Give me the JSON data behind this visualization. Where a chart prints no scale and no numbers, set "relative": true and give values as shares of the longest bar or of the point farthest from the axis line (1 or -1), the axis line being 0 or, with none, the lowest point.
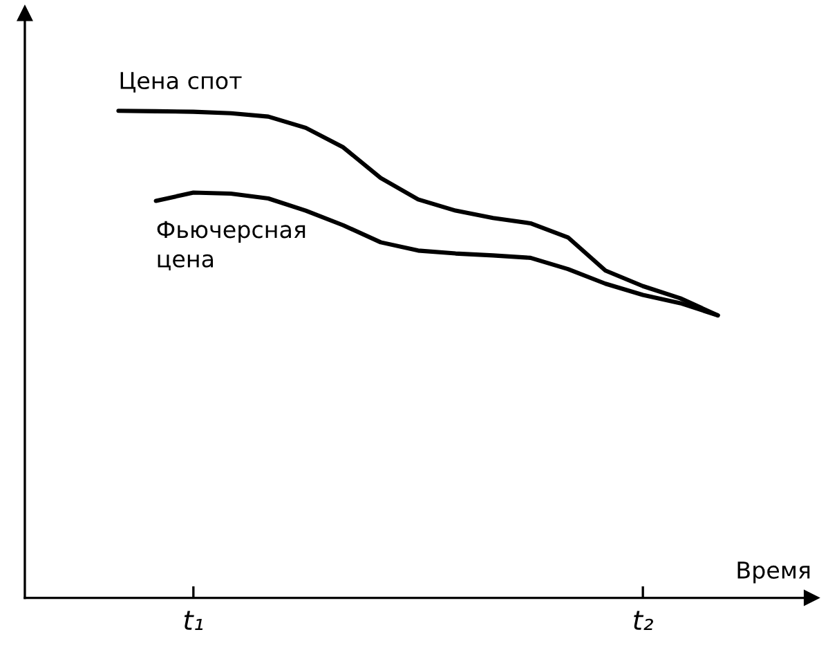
{
  "chart_data": {
    "type": "line",
    "relative": true,
    "xlabel": "Время",
    "categories": [
      null,
      null,
      null,
      null,
      "t₁",
      null,
      null,
      null,
      null,
      null,
      null,
      null,
      null,
      null,
      null,
      null,
      "t₂",
      null,
      null,
      null,
      null
    ],
    "grid": false,
    "legend": false,
    "marker": "none",
    "line_style": "solid",
    "series": [
      {
        "name": "Цена спот",
        "color": "#000000",
        "values": [
          null,
          null,
          1.0,
          0.999,
          0.998,
          0.995,
          0.988,
          0.965,
          0.925,
          0.862,
          0.818,
          0.795,
          0.78,
          0.769,
          0.74,
          0.672,
          0.64,
          0.615,
          0.58,
          null,
          null
        ]
      },
      {
        "name": "Фьючерсная\nцена",
        "color": "#000000",
        "values": [
          null,
          null,
          null,
          0.815,
          0.832,
          0.83,
          0.82,
          0.795,
          0.765,
          0.73,
          0.713,
          0.707,
          0.703,
          0.698,
          0.675,
          0.645,
          0.622,
          0.605,
          0.58,
          null,
          null
        ]
      }
    ]
  }
}
